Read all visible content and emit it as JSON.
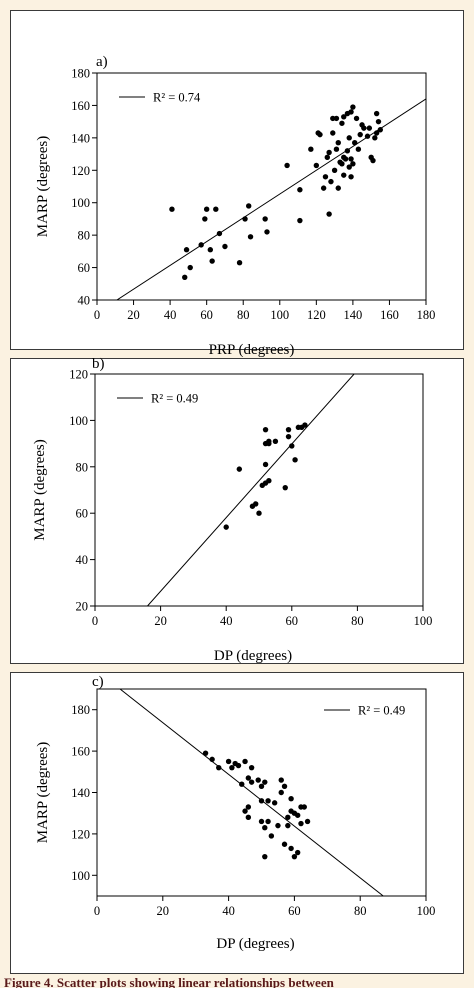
{
  "caption": "Figure 4. Scatter plots showing linear relationships between",
  "chart_data": [
    {
      "type": "scatter",
      "panel_label": "a)",
      "xlabel": "PRP (degrees)",
      "ylabel": "MARP (degrees)",
      "xlim": [
        0,
        180
      ],
      "ylim": [
        40,
        180
      ],
      "xticks": [
        0,
        20,
        40,
        60,
        80,
        100,
        120,
        140,
        160,
        180
      ],
      "yticks": [
        40,
        60,
        80,
        100,
        120,
        140,
        160,
        180
      ],
      "legend_label": "R² = 0.74",
      "legend_position": "top-left",
      "fit_line": [
        [
          0,
          32
        ],
        [
          180,
          164
        ]
      ],
      "points": [
        [
          41,
          96
        ],
        [
          48,
          54
        ],
        [
          49,
          71
        ],
        [
          51,
          60
        ],
        [
          57,
          74
        ],
        [
          59,
          90
        ],
        [
          60,
          96
        ],
        [
          62,
          71
        ],
        [
          63,
          64
        ],
        [
          65,
          96
        ],
        [
          67,
          81
        ],
        [
          70,
          73
        ],
        [
          78,
          63
        ],
        [
          81,
          90
        ],
        [
          83,
          98
        ],
        [
          84,
          79
        ],
        [
          92,
          90
        ],
        [
          93,
          82
        ],
        [
          104,
          123
        ],
        [
          111,
          108
        ],
        [
          111,
          89
        ],
        [
          117,
          133
        ],
        [
          120,
          123
        ],
        [
          121,
          143
        ],
        [
          122,
          142
        ],
        [
          124,
          109
        ],
        [
          125,
          116
        ],
        [
          126,
          128
        ],
        [
          127,
          131
        ],
        [
          127,
          93
        ],
        [
          128,
          113
        ],
        [
          129,
          143
        ],
        [
          129,
          152
        ],
        [
          130,
          120
        ],
        [
          131,
          133
        ],
        [
          131,
          152
        ],
        [
          132,
          109
        ],
        [
          132,
          137
        ],
        [
          133,
          125
        ],
        [
          134,
          124
        ],
        [
          134,
          149
        ],
        [
          135,
          153
        ],
        [
          135,
          128
        ],
        [
          135,
          117
        ],
        [
          136,
          127
        ],
        [
          137,
          132
        ],
        [
          137,
          155
        ],
        [
          138,
          140
        ],
        [
          138,
          122
        ],
        [
          139,
          127
        ],
        [
          139,
          156
        ],
        [
          139,
          116
        ],
        [
          140,
          159
        ],
        [
          140,
          124
        ],
        [
          141,
          137
        ],
        [
          142,
          152
        ],
        [
          143,
          133
        ],
        [
          144,
          142
        ],
        [
          145,
          148
        ],
        [
          146,
          146
        ],
        [
          148,
          141
        ],
        [
          149,
          146
        ],
        [
          150,
          128
        ],
        [
          151,
          126
        ],
        [
          152,
          140
        ],
        [
          153,
          143
        ],
        [
          153,
          155
        ],
        [
          154,
          150
        ],
        [
          155,
          145
        ]
      ]
    },
    {
      "type": "scatter",
      "panel_label": "b)",
      "xlabel": "DP (degrees)",
      "ylabel": "MARP (degrees)",
      "xlim": [
        0,
        100
      ],
      "ylim": [
        20,
        120
      ],
      "xticks": [
        0,
        20,
        40,
        60,
        80,
        100
      ],
      "yticks": [
        20,
        40,
        60,
        80,
        100,
        120
      ],
      "legend_label": "R² = 0.49",
      "legend_position": "top-left",
      "fit_line": [
        [
          16,
          20
        ],
        [
          79,
          120
        ]
      ],
      "points": [
        [
          40,
          54
        ],
        [
          44,
          79
        ],
        [
          48,
          63
        ],
        [
          49,
          64
        ],
        [
          50,
          60
        ],
        [
          51,
          72
        ],
        [
          52,
          73
        ],
        [
          52,
          96
        ],
        [
          52,
          90
        ],
        [
          52,
          81
        ],
        [
          53,
          74
        ],
        [
          53,
          91
        ],
        [
          53,
          90
        ],
        [
          55,
          91
        ],
        [
          58,
          71
        ],
        [
          59,
          93
        ],
        [
          59,
          96
        ],
        [
          60,
          89
        ],
        [
          61,
          83
        ],
        [
          62,
          97
        ],
        [
          63,
          97
        ],
        [
          64,
          98
        ]
      ]
    },
    {
      "type": "scatter",
      "panel_label": "c)",
      "xlabel": "DP (degrees)",
      "ylabel": "MARP (degrees)",
      "xlim": [
        0,
        100
      ],
      "ylim": [
        90,
        190
      ],
      "xticks": [
        0,
        20,
        40,
        60,
        80,
        100
      ],
      "yticks": [
        100,
        120,
        140,
        160,
        180
      ],
      "legend_label": "R² = 0.49",
      "legend_position": "top-right",
      "fit_line": [
        [
          7,
          190
        ],
        [
          87,
          90
        ]
      ],
      "points": [
        [
          33,
          159
        ],
        [
          35,
          156
        ],
        [
          37,
          152
        ],
        [
          40,
          155
        ],
        [
          41,
          152
        ],
        [
          42,
          154
        ],
        [
          43,
          153
        ],
        [
          44,
          144
        ],
        [
          45,
          155
        ],
        [
          45,
          131
        ],
        [
          46,
          147
        ],
        [
          46,
          128
        ],
        [
          46,
          133
        ],
        [
          47,
          152
        ],
        [
          47,
          145
        ],
        [
          49,
          146
        ],
        [
          50,
          143
        ],
        [
          50,
          136
        ],
        [
          50,
          126
        ],
        [
          51,
          123
        ],
        [
          51,
          145
        ],
        [
          51,
          109
        ],
        [
          52,
          126
        ],
        [
          52,
          136
        ],
        [
          53,
          119
        ],
        [
          54,
          135
        ],
        [
          55,
          124
        ],
        [
          56,
          146
        ],
        [
          56,
          140
        ],
        [
          57,
          143
        ],
        [
          57,
          115
        ],
        [
          58,
          128
        ],
        [
          58,
          124
        ],
        [
          59,
          113
        ],
        [
          59,
          131
        ],
        [
          59,
          137
        ],
        [
          60,
          130
        ],
        [
          60,
          109
        ],
        [
          61,
          111
        ],
        [
          61,
          129
        ],
        [
          62,
          125
        ],
        [
          62,
          133
        ],
        [
          63,
          133
        ],
        [
          64,
          126
        ]
      ]
    }
  ]
}
